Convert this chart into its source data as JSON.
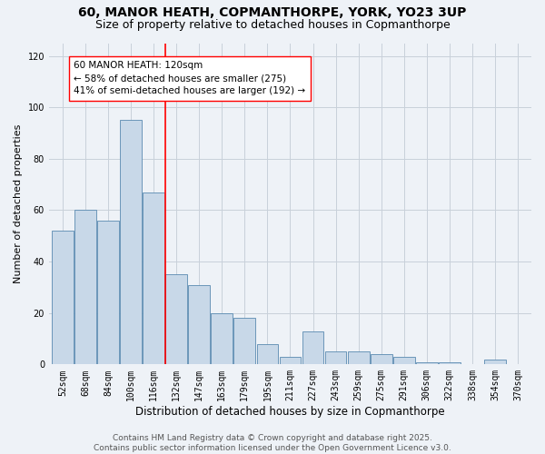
{
  "title": "60, MANOR HEATH, COPMANTHORPE, YORK, YO23 3UP",
  "subtitle": "Size of property relative to detached houses in Copmanthorpe",
  "xlabel": "Distribution of detached houses by size in Copmanthorpe",
  "ylabel": "Number of detached properties",
  "categories": [
    "52sqm",
    "68sqm",
    "84sqm",
    "100sqm",
    "116sqm",
    "132sqm",
    "147sqm",
    "163sqm",
    "179sqm",
    "195sqm",
    "211sqm",
    "227sqm",
    "243sqm",
    "259sqm",
    "275sqm",
    "291sqm",
    "306sqm",
    "322sqm",
    "338sqm",
    "354sqm",
    "370sqm"
  ],
  "values": [
    52,
    60,
    56,
    95,
    67,
    35,
    31,
    20,
    18,
    8,
    3,
    13,
    5,
    5,
    4,
    3,
    1,
    1,
    0,
    2,
    0
  ],
  "bar_color": "#c8d8e8",
  "bar_edge_color": "#5a8ab0",
  "vline_x_index": 4,
  "vline_color": "red",
  "annotation_text": "60 MANOR HEATH: 120sqm\n← 58% of detached houses are smaller (275)\n41% of semi-detached houses are larger (192) →",
  "annotation_box_color": "white",
  "annotation_box_edge": "red",
  "bg_color": "#eef2f7",
  "grid_color": "#c8d0da",
  "footer_text": "Contains HM Land Registry data © Crown copyright and database right 2025.\nContains public sector information licensed under the Open Government Licence v3.0.",
  "ylim": [
    0,
    125
  ],
  "yticks": [
    0,
    20,
    40,
    60,
    80,
    100,
    120
  ],
  "title_fontsize": 10,
  "subtitle_fontsize": 9,
  "xlabel_fontsize": 8.5,
  "ylabel_fontsize": 8,
  "tick_fontsize": 7,
  "annotation_fontsize": 7.5,
  "footer_fontsize": 6.5
}
